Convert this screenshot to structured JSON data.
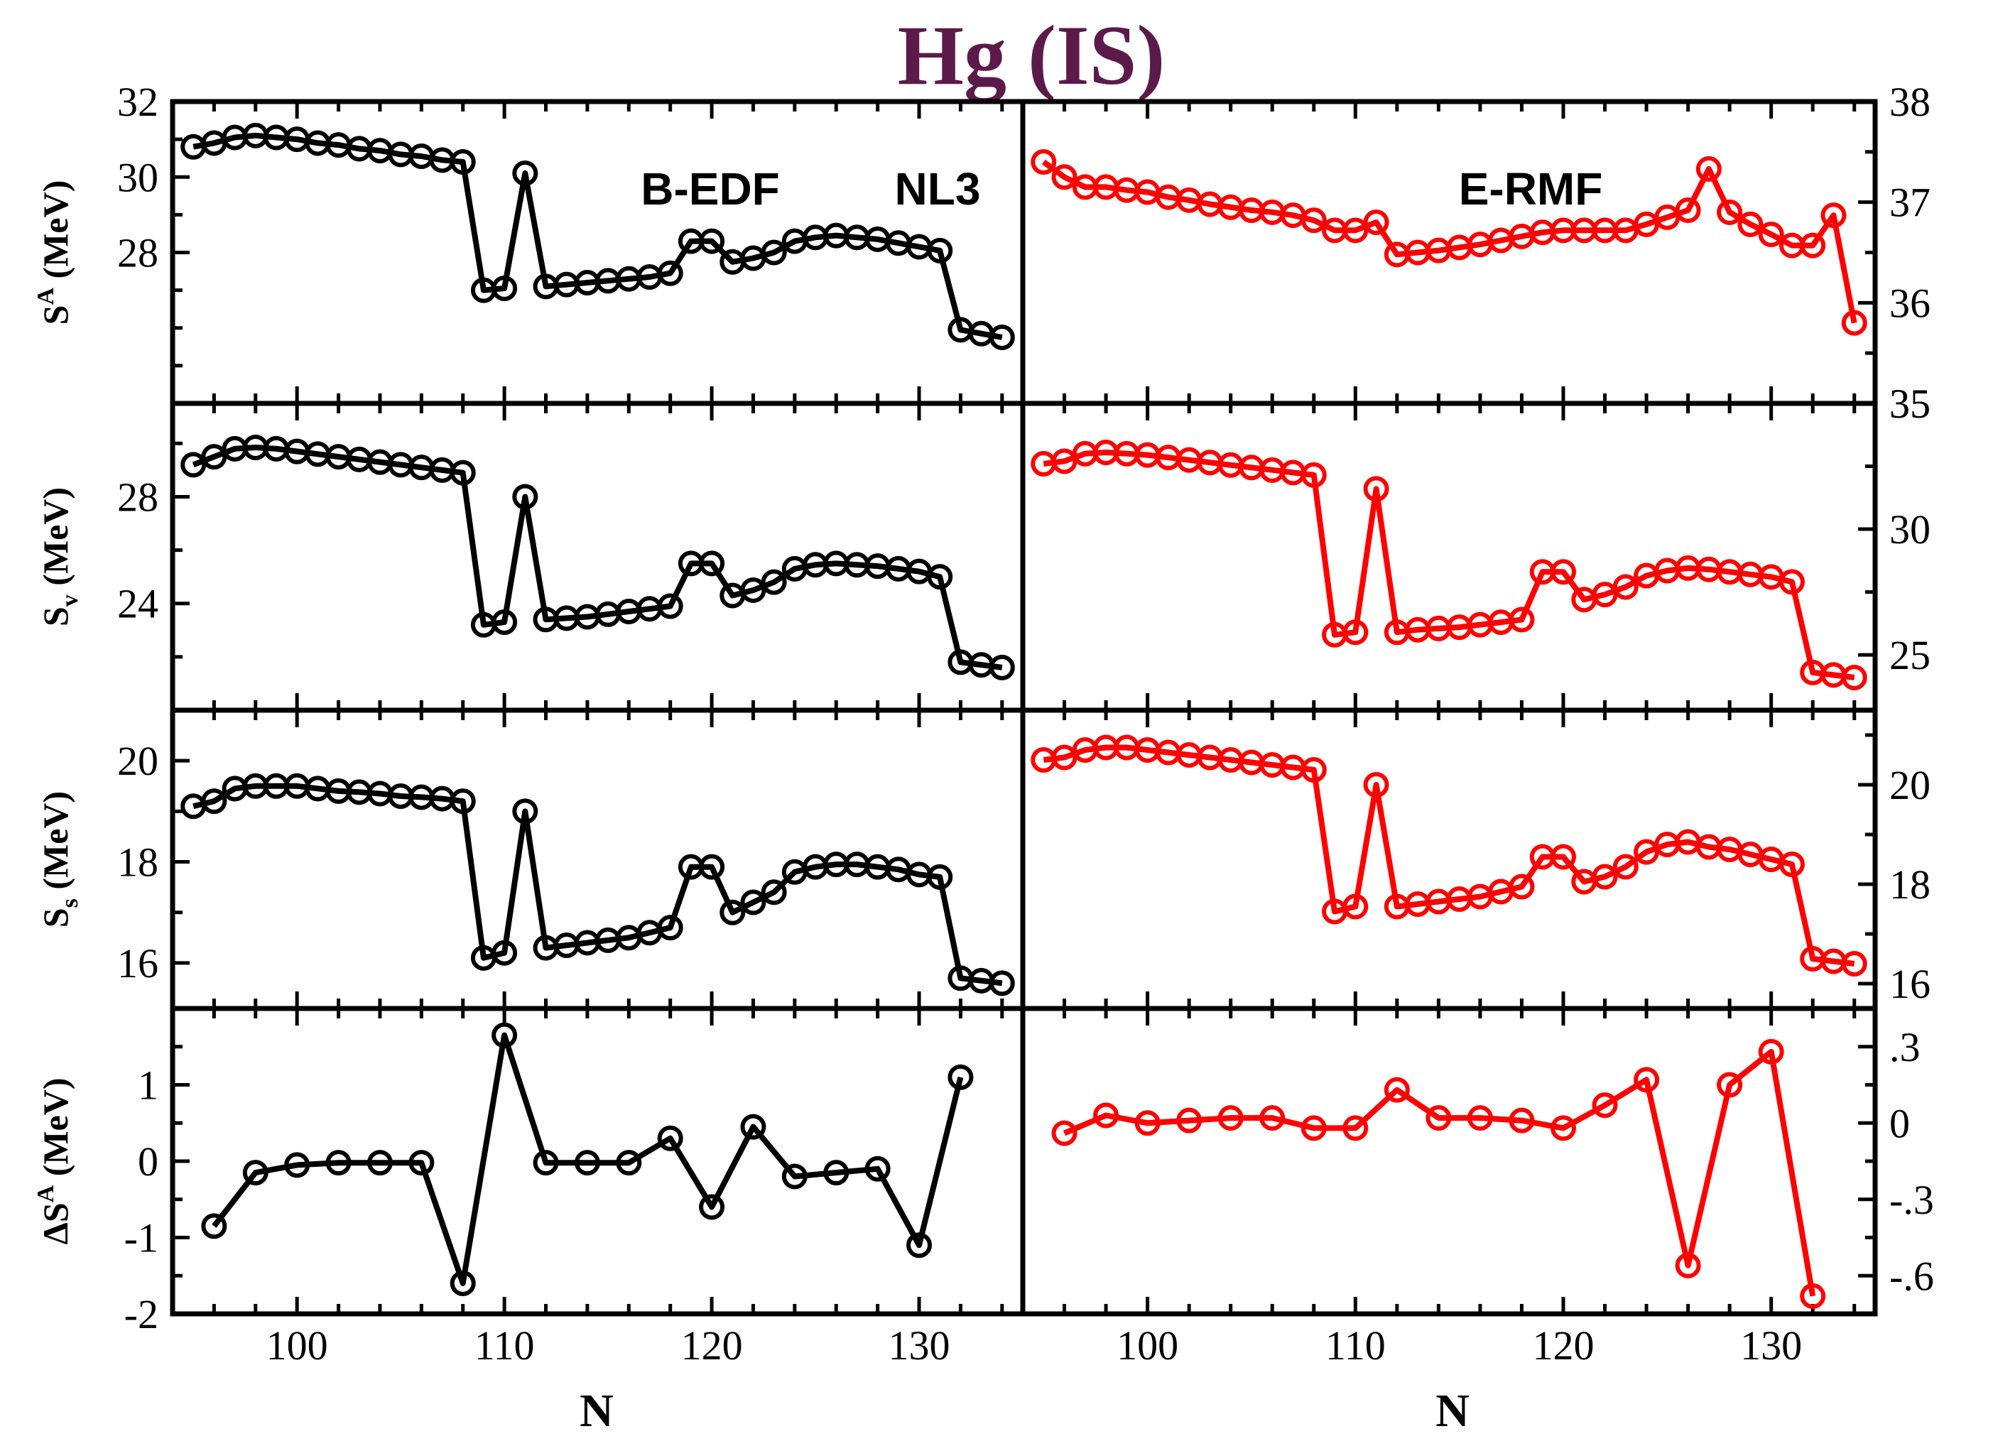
{
  "title": "Hg (IS)",
  "x_label": "N",
  "annotations": [
    "B-EDF",
    "NL3",
    "E-RMF"
  ],
  "colors": {
    "left_series": "#000000",
    "right_series": "#ff0000",
    "title": "#5c1a4a"
  },
  "chart_data": [
    {
      "id": "SA",
      "type": "line",
      "panel": "left",
      "row": 0,
      "ylabel_main": "S",
      "ylabel_sup": "A",
      "ylabel_sub": "",
      "ylabel_unit": " (MeV)",
      "xlim": [
        94,
        135
      ],
      "ylim": [
        24,
        32
      ],
      "yticks": [
        28,
        30,
        32
      ],
      "minor_yticks": [
        25,
        26,
        27,
        29,
        31
      ],
      "xticks": [
        100,
        110,
        120,
        130
      ],
      "series": [
        {
          "name": "NL3",
          "color": "#000000",
          "x": [
            95,
            96,
            97,
            98,
            99,
            100,
            101,
            102,
            103,
            104,
            105,
            106,
            107,
            108,
            109,
            110,
            111,
            112,
            113,
            114,
            115,
            116,
            117,
            118,
            119,
            120,
            121,
            122,
            123,
            124,
            125,
            126,
            127,
            128,
            129,
            130,
            131,
            132,
            133,
            134
          ],
          "y": [
            30.8,
            30.9,
            31.05,
            31.1,
            31.05,
            31.0,
            30.9,
            30.85,
            30.75,
            30.7,
            30.6,
            30.55,
            30.45,
            30.4,
            27.0,
            27.05,
            30.1,
            27.1,
            27.15,
            27.2,
            27.25,
            27.3,
            27.35,
            27.45,
            28.3,
            28.3,
            27.75,
            27.85,
            28.0,
            28.3,
            28.4,
            28.45,
            28.4,
            28.35,
            28.25,
            28.15,
            28.05,
            25.95,
            25.85,
            25.75
          ]
        }
      ]
    },
    {
      "id": "SA",
      "type": "line",
      "panel": "right",
      "row": 0,
      "xlim": [
        94,
        135
      ],
      "ylim": [
        35,
        38
      ],
      "yticks": [
        35,
        36,
        37,
        38
      ],
      "minor_yticks": [
        35.5,
        36.5,
        37.5
      ],
      "xticks": [
        100,
        110,
        120,
        130
      ],
      "series": [
        {
          "name": "E-RMF",
          "color": "#ff0000",
          "x": [
            95,
            96,
            97,
            98,
            99,
            100,
            101,
            102,
            103,
            104,
            105,
            106,
            107,
            108,
            109,
            110,
            111,
            112,
            113,
            114,
            115,
            116,
            117,
            118,
            119,
            120,
            121,
            122,
            123,
            124,
            125,
            126,
            127,
            128,
            129,
            130,
            131,
            132,
            133,
            134
          ],
          "y": [
            37.4,
            37.25,
            37.15,
            37.15,
            37.12,
            37.1,
            37.05,
            37.02,
            36.98,
            36.95,
            36.92,
            36.9,
            36.87,
            36.82,
            36.72,
            36.72,
            36.8,
            36.48,
            36.5,
            36.52,
            36.55,
            36.58,
            36.62,
            36.66,
            36.7,
            36.72,
            36.72,
            36.72,
            36.72,
            36.78,
            36.85,
            36.92,
            37.33,
            36.9,
            36.78,
            36.68,
            36.57,
            36.57,
            36.87,
            35.8
          ]
        }
      ]
    },
    {
      "id": "Sv",
      "type": "line",
      "panel": "left",
      "row": 1,
      "ylabel_main": "S",
      "ylabel_sup": "",
      "ylabel_sub": "v",
      "ylabel_unit": " (MeV)",
      "xlim": [
        94,
        135
      ],
      "ylim": [
        20,
        31.5
      ],
      "yticks": [
        24,
        28
      ],
      "minor_yticks": [
        22,
        26,
        30
      ],
      "xticks": [
        100,
        110,
        120,
        130
      ],
      "series": [
        {
          "name": "NL3",
          "color": "#000000",
          "x": [
            95,
            96,
            97,
            98,
            99,
            100,
            101,
            102,
            103,
            104,
            105,
            106,
            107,
            108,
            109,
            110,
            111,
            112,
            113,
            114,
            115,
            116,
            117,
            118,
            119,
            120,
            121,
            122,
            123,
            124,
            125,
            126,
            127,
            128,
            129,
            130,
            131,
            132,
            133,
            134
          ],
          "y": [
            29.2,
            29.5,
            29.8,
            29.85,
            29.8,
            29.7,
            29.6,
            29.5,
            29.4,
            29.3,
            29.2,
            29.1,
            29.0,
            28.9,
            23.2,
            23.3,
            28.0,
            23.4,
            23.45,
            23.5,
            23.6,
            23.7,
            23.8,
            23.9,
            25.5,
            25.5,
            24.3,
            24.5,
            24.8,
            25.3,
            25.45,
            25.5,
            25.45,
            25.4,
            25.3,
            25.2,
            25.0,
            21.8,
            21.7,
            21.6
          ]
        }
      ]
    },
    {
      "id": "Sv",
      "type": "line",
      "panel": "right",
      "row": 1,
      "xlim": [
        94,
        135
      ],
      "ylim": [
        22.8,
        35
      ],
      "yticks": [
        25,
        30,
        35
      ],
      "minor_yticks": [
        27.5,
        32.5
      ],
      "xticks": [
        100,
        110,
        120,
        130
      ],
      "series": [
        {
          "name": "E-RMF",
          "color": "#ff0000",
          "x": [
            95,
            96,
            97,
            98,
            99,
            100,
            101,
            102,
            103,
            104,
            105,
            106,
            107,
            108,
            109,
            110,
            111,
            112,
            113,
            114,
            115,
            116,
            117,
            118,
            119,
            120,
            121,
            122,
            123,
            124,
            125,
            126,
            127,
            128,
            129,
            130,
            131,
            132,
            133,
            134
          ],
          "y": [
            32.6,
            32.7,
            33.0,
            33.05,
            33.0,
            32.95,
            32.85,
            32.75,
            32.65,
            32.55,
            32.45,
            32.35,
            32.25,
            32.15,
            25.8,
            25.9,
            31.6,
            25.9,
            26.0,
            26.05,
            26.1,
            26.2,
            26.3,
            26.4,
            28.3,
            28.3,
            27.2,
            27.4,
            27.7,
            28.15,
            28.35,
            28.45,
            28.4,
            28.3,
            28.2,
            28.1,
            27.9,
            24.3,
            24.2,
            24.1
          ]
        }
      ]
    },
    {
      "id": "Ss",
      "type": "line",
      "panel": "left",
      "row": 2,
      "ylabel_main": "S",
      "ylabel_sup": "",
      "ylabel_sub": "s",
      "ylabel_unit": " (MeV)",
      "xlim": [
        94,
        135
      ],
      "ylim": [
        15.1,
        21
      ],
      "yticks": [
        16,
        18,
        20
      ],
      "minor_yticks": [
        17,
        19,
        21
      ],
      "xticks": [
        100,
        110,
        120,
        130
      ],
      "series": [
        {
          "name": "NL3",
          "color": "#000000",
          "x": [
            95,
            96,
            97,
            98,
            99,
            100,
            101,
            102,
            103,
            104,
            105,
            106,
            107,
            108,
            109,
            110,
            111,
            112,
            113,
            114,
            115,
            116,
            117,
            118,
            119,
            120,
            121,
            122,
            123,
            124,
            125,
            126,
            127,
            128,
            129,
            130,
            131,
            132,
            133,
            134
          ],
          "y": [
            19.1,
            19.2,
            19.45,
            19.5,
            19.5,
            19.5,
            19.45,
            19.4,
            19.38,
            19.35,
            19.3,
            19.28,
            19.25,
            19.2,
            16.1,
            16.2,
            19.0,
            16.3,
            16.35,
            16.4,
            16.45,
            16.5,
            16.6,
            16.7,
            17.9,
            17.9,
            17.0,
            17.2,
            17.4,
            17.8,
            17.9,
            17.95,
            17.95,
            17.9,
            17.85,
            17.75,
            17.7,
            15.7,
            15.65,
            15.6
          ]
        }
      ]
    },
    {
      "id": "Ss",
      "type": "line",
      "panel": "right",
      "row": 2,
      "xlim": [
        94,
        135
      ],
      "ylim": [
        15.5,
        21.5
      ],
      "yticks": [
        16,
        18,
        20
      ],
      "minor_yticks": [
        17,
        19,
        21
      ],
      "xticks": [
        100,
        110,
        120,
        130
      ],
      "series": [
        {
          "name": "E-RMF",
          "color": "#ff0000",
          "x": [
            95,
            96,
            97,
            98,
            99,
            100,
            101,
            102,
            103,
            104,
            105,
            106,
            107,
            108,
            109,
            110,
            111,
            112,
            113,
            114,
            115,
            116,
            117,
            118,
            119,
            120,
            121,
            122,
            123,
            124,
            125,
            126,
            127,
            128,
            129,
            130,
            131,
            132,
            133,
            134
          ],
          "y": [
            20.5,
            20.55,
            20.7,
            20.75,
            20.75,
            20.7,
            20.65,
            20.6,
            20.55,
            20.5,
            20.45,
            20.4,
            20.35,
            20.3,
            17.45,
            17.55,
            20.0,
            17.55,
            17.6,
            17.65,
            17.7,
            17.75,
            17.85,
            17.95,
            18.55,
            18.55,
            18.05,
            18.15,
            18.35,
            18.65,
            18.8,
            18.85,
            18.75,
            18.7,
            18.6,
            18.5,
            18.4,
            16.5,
            16.45,
            16.4
          ]
        }
      ]
    },
    {
      "id": "dSA",
      "type": "line",
      "panel": "left",
      "row": 3,
      "ylabel_main": "ΔS",
      "ylabel_sup": "A",
      "ylabel_sub": "",
      "ylabel_unit": " (MeV)",
      "xlim": [
        94,
        135
      ],
      "ylim": [
        -2,
        2
      ],
      "yticks": [
        -2,
        -1,
        0,
        1
      ],
      "minor_yticks": [
        -1.5,
        -0.5,
        0.5,
        1.5
      ],
      "xticks": [
        100,
        110,
        120,
        130
      ],
      "series": [
        {
          "name": "NL3",
          "color": "#000000",
          "x": [
            96,
            98,
            100,
            102,
            104,
            106,
            108,
            110,
            112,
            114,
            116,
            118,
            120,
            122,
            124,
            126,
            128,
            130,
            132
          ],
          "y": [
            -0.85,
            -0.15,
            -0.05,
            -0.02,
            -0.02,
            -0.02,
            -1.6,
            1.65,
            -0.02,
            -0.02,
            -0.02,
            0.3,
            -0.6,
            0.45,
            -0.2,
            -0.15,
            -0.1,
            -1.1,
            1.1
          ]
        }
      ]
    },
    {
      "id": "dSA",
      "type": "line",
      "panel": "right",
      "row": 3,
      "xlim": [
        94,
        135
      ],
      "ylim": [
        -0.75,
        0.45
      ],
      "yticks": [
        -0.6,
        -0.3,
        0,
        0.3
      ],
      "minor_yticks": [
        -0.45,
        -0.15,
        0.15
      ],
      "xticks": [
        100,
        110,
        120,
        130
      ],
      "series": [
        {
          "name": "E-RMF",
          "color": "#ff0000",
          "x": [
            96,
            98,
            100,
            102,
            104,
            106,
            108,
            110,
            112,
            114,
            116,
            118,
            120,
            122,
            124,
            126,
            128,
            130,
            132
          ],
          "y": [
            -0.04,
            0.03,
            0.0,
            0.01,
            0.02,
            0.02,
            -0.02,
            -0.02,
            0.13,
            0.02,
            0.02,
            0.01,
            -0.02,
            0.07,
            0.17,
            -0.56,
            0.15,
            0.28,
            -0.68
          ]
        }
      ]
    }
  ]
}
